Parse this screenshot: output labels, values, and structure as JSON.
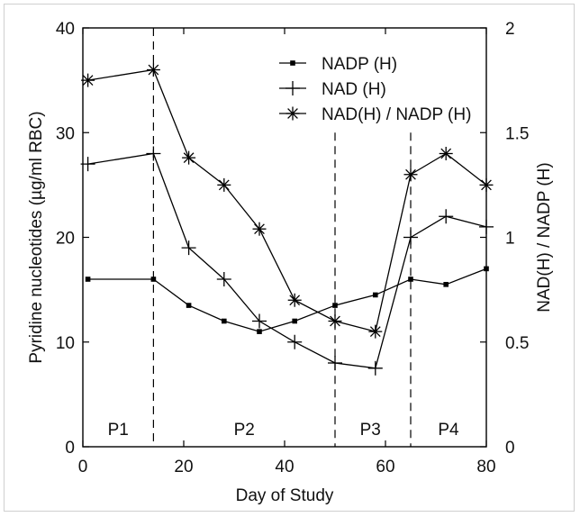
{
  "chart_data": {
    "type": "line",
    "xlabel": "Day of Study",
    "ylabel": "Pyridine nucleotides (µg/ml RBC)",
    "y2label": "NAD(H) / NADP (H)",
    "xlim": [
      0,
      80
    ],
    "ylim": [
      0,
      40
    ],
    "y2lim": [
      0,
      2
    ],
    "xticks": [
      "0",
      "20",
      "40",
      "60",
      "80"
    ],
    "yticks": [
      "0",
      "10",
      "20",
      "30",
      "40"
    ],
    "y2ticks": [
      "0",
      "0.5",
      "1",
      "1.5",
      "2"
    ],
    "grid": false,
    "legend_position": "top-right",
    "series": [
      {
        "name": "NADP (H)",
        "marker": "square",
        "axis": "left",
        "x": [
          1,
          14,
          21,
          28,
          35,
          42,
          50,
          58,
          65,
          72,
          80
        ],
        "y": [
          16,
          16,
          13.5,
          12,
          11,
          12,
          13.5,
          14.5,
          16,
          15.5,
          17
        ]
      },
      {
        "name": "NAD (H)",
        "marker": "plus",
        "axis": "left",
        "x": [
          1,
          14,
          21,
          28,
          35,
          42,
          50,
          58,
          65,
          72,
          80
        ],
        "y": [
          27,
          28,
          19,
          16,
          12,
          10,
          8,
          7.5,
          20,
          22,
          21
        ]
      },
      {
        "name": "NAD(H) / NADP (H)",
        "marker": "asterisk",
        "axis": "right",
        "x": [
          1,
          14,
          21,
          28,
          35,
          42,
          50,
          58,
          65,
          72,
          80
        ],
        "y": [
          1.75,
          1.8,
          1.38,
          1.25,
          1.04,
          0.7,
          0.6,
          0.55,
          1.3,
          1.4,
          1.25
        ]
      }
    ],
    "period_dividers": [
      14,
      50,
      65
    ],
    "periods": [
      {
        "label": "P1",
        "x": 7
      },
      {
        "label": "P2",
        "x": 32
      },
      {
        "label": "P3",
        "x": 57
      },
      {
        "label": "P4",
        "x": 72.5
      }
    ]
  }
}
